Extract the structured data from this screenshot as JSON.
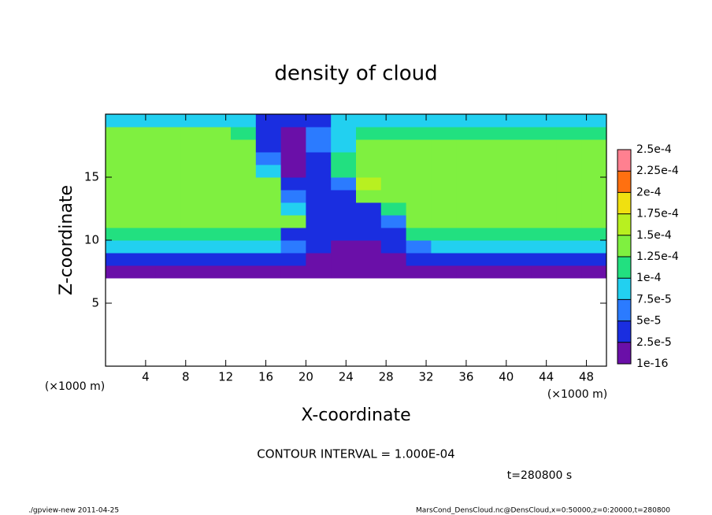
{
  "chart_data": {
    "type": "heatmap",
    "title": "density of cloud",
    "x_label": "X-coordinate",
    "y_label": "Z-coordinate",
    "x_unit": "(×1000 m)",
    "x_unit_right": "(×1000 m)",
    "contour_note": "CONTOUR INTERVAL = 1.000E-04",
    "time_note": "t=280800 s",
    "footer_left": "./gpview-new  2011-04-25",
    "footer_right": "MarsCond_DensCloud.nc@DensCloud,x=0:50000,z=0:20000,t=280800",
    "xlim": [
      0,
      50
    ],
    "ylim": [
      0,
      20
    ],
    "xticks": [
      4,
      8,
      12,
      16,
      20,
      24,
      28,
      32,
      36,
      40,
      44,
      48
    ],
    "yticks": [
      5,
      10,
      15
    ],
    "x_edges": [
      0,
      2.5,
      5,
      7.5,
      10,
      12.5,
      15,
      17.5,
      20,
      22.5,
      25,
      27.5,
      30,
      32.5,
      35,
      37.5,
      40,
      42.5,
      45,
      47.5,
      50
    ],
    "z_edges": [
      7,
      8,
      9,
      10,
      11,
      12,
      13,
      14,
      15,
      16,
      17,
      18,
      19,
      20
    ],
    "values": [
      [
        1e-05,
        1e-05,
        1e-05,
        1e-05,
        1e-05,
        1e-05,
        1e-05,
        1e-05,
        1e-05,
        1e-05,
        1e-05,
        1e-05,
        1e-05,
        1e-05,
        1e-05,
        1e-05,
        1e-05,
        1e-05,
        1e-05,
        1e-05
      ],
      [
        3e-05,
        3e-05,
        3e-05,
        3e-05,
        3e-05,
        3e-05,
        3e-05,
        3e-05,
        1e-05,
        1e-05,
        1e-05,
        1e-05,
        3e-05,
        3e-05,
        3e-05,
        3e-05,
        3e-05,
        3e-05,
        3e-05,
        3e-05
      ],
      [
        8.5e-05,
        8.5e-05,
        8.5e-05,
        8.5e-05,
        8.5e-05,
        8.5e-05,
        8.5e-05,
        6e-05,
        3e-05,
        2e-05,
        2e-05,
        3e-05,
        6e-05,
        8.5e-05,
        8.5e-05,
        8.5e-05,
        8.5e-05,
        8.5e-05,
        8.5e-05,
        8.5e-05
      ],
      [
        0.00011,
        0.00011,
        0.00011,
        0.00011,
        0.00011,
        0.00011,
        0.00011,
        4e-05,
        4e-05,
        4e-05,
        4e-05,
        4e-05,
        0.00011,
        0.00011,
        0.00011,
        0.00011,
        0.00011,
        0.00011,
        0.00011,
        0.00011
      ],
      [
        0.00014,
        0.00014,
        0.00014,
        0.00014,
        0.00014,
        0.00014,
        0.00014,
        0.00014,
        3e-05,
        3e-05,
        3e-05,
        6e-05,
        0.00014,
        0.00014,
        0.00014,
        0.00014,
        0.00014,
        0.00014,
        0.00014,
        0.00014
      ],
      [
        0.00014,
        0.00014,
        0.00014,
        0.00014,
        0.00014,
        0.00014,
        0.00014,
        9e-05,
        3e-05,
        3e-05,
        3e-05,
        0.00012,
        0.00014,
        0.00014,
        0.00014,
        0.00014,
        0.00014,
        0.00014,
        0.00014,
        0.00014
      ],
      [
        0.00014,
        0.00014,
        0.00014,
        0.00014,
        0.00014,
        0.00014,
        0.00014,
        6e-05,
        3e-05,
        3e-05,
        0.00013,
        0.00014,
        0.00014,
        0.00014,
        0.00014,
        0.00014,
        0.00014,
        0.00014,
        0.00014,
        0.00014
      ],
      [
        0.000145,
        0.000145,
        0.000145,
        0.000145,
        0.000145,
        0.000145,
        0.000145,
        3e-05,
        3e-05,
        5e-05,
        0.00016,
        0.000145,
        0.000145,
        0.000145,
        0.000145,
        0.000145,
        0.000145,
        0.000145,
        0.000145,
        0.000145
      ],
      [
        0.000145,
        0.000145,
        0.000145,
        0.000145,
        0.000145,
        0.000145,
        9e-05,
        2e-05,
        3e-05,
        0.00012,
        0.000145,
        0.000145,
        0.000145,
        0.000145,
        0.000145,
        0.000145,
        0.000145,
        0.000145,
        0.000145,
        0.000145
      ],
      [
        0.00014,
        0.00014,
        0.00014,
        0.00014,
        0.00014,
        0.00014,
        5e-05,
        2e-05,
        4e-05,
        0.00011,
        0.00014,
        0.00014,
        0.00014,
        0.00014,
        0.00014,
        0.00014,
        0.00014,
        0.00014,
        0.00014,
        0.00014
      ],
      [
        0.000135,
        0.000135,
        0.000135,
        0.000135,
        0.000135,
        0.000135,
        3e-05,
        2e-05,
        5e-05,
        9e-05,
        0.000135,
        0.000135,
        0.000135,
        0.000135,
        0.000135,
        0.000135,
        0.000135,
        0.000135,
        0.000135,
        0.000135
      ],
      [
        0.000125,
        0.000125,
        0.000125,
        0.000125,
        0.000125,
        0.00011,
        3e-05,
        2e-05,
        5e-05,
        8e-05,
        0.00012,
        0.00012,
        0.00012,
        0.00012,
        0.00012,
        0.00012,
        0.00012,
        0.00012,
        0.00012,
        0.00012
      ],
      [
        8e-05,
        8e-05,
        8e-05,
        8e-05,
        8e-05,
        8e-05,
        4e-05,
        4e-05,
        4e-05,
        8e-05,
        8e-05,
        8e-05,
        8e-05,
        8e-05,
        8e-05,
        8e-05,
        8e-05,
        8e-05,
        8e-05,
        8e-05
      ]
    ],
    "levels": [
      {
        "value": 1e-16,
        "label": "1e-16"
      },
      {
        "value": 2.5e-05,
        "label": "2.5e-5"
      },
      {
        "value": 5e-05,
        "label": "5e-5"
      },
      {
        "value": 7.5e-05,
        "label": "7.5e-5"
      },
      {
        "value": 0.0001,
        "label": "1e-4"
      },
      {
        "value": 0.000125,
        "label": "1.25e-4"
      },
      {
        "value": 0.00015,
        "label": "1.5e-4"
      },
      {
        "value": 0.000175,
        "label": "1.75e-4"
      },
      {
        "value": 0.0002,
        "label": "2e-4"
      },
      {
        "value": 0.000225,
        "label": "2.25e-4"
      },
      {
        "value": 0.00025,
        "label": "2.5e-4"
      }
    ],
    "colors": [
      "#6a0fa8",
      "#1a2ee0",
      "#2b7bff",
      "#22d0f0",
      "#22e080",
      "#7ff040",
      "#b8f020",
      "#f0e010",
      "#ff7010",
      "#ff8090"
    ]
  }
}
